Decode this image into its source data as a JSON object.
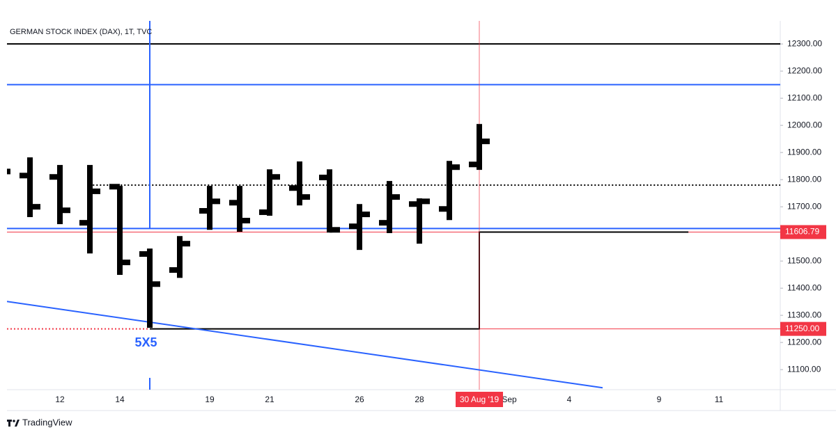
{
  "chart_data": {
    "type": "ohlc",
    "title": "GERMAN STOCK INDEX (DAX), 1T, TVC",
    "categories": [
      null,
      null,
      "12",
      null,
      "14",
      null,
      null,
      "19",
      null,
      "21",
      null,
      null,
      "26",
      null,
      "28",
      null,
      "30 Aug '19",
      "Sep",
      null,
      "4",
      null,
      null,
      "9",
      null,
      "11"
    ],
    "open": [
      11850,
      11815,
      11810,
      11641,
      11774,
      11526,
      11467,
      11685,
      11715,
      11680,
      11769,
      11808,
      11628,
      11641,
      11710,
      11692,
      11856,
      null,
      null,
      null,
      null,
      null,
      null,
      null,
      null
    ],
    "high": [
      11850,
      11882,
      11854,
      11854,
      11777,
      11546,
      11592,
      11777,
      11777,
      11838,
      11867,
      11838,
      11710,
      11795,
      11731,
      11869,
      12005,
      null,
      null,
      null,
      null,
      null,
      null,
      null,
      null
    ],
    "low": [
      11830,
      11662,
      11636,
      11528,
      11449,
      11254,
      11438,
      11615,
      11608,
      11667,
      11705,
      11605,
      11541,
      11603,
      11564,
      11651,
      11836,
      null,
      null,
      null,
      null,
      null,
      null,
      null,
      null
    ],
    "close": [
      11830,
      11700,
      11687,
      11757,
      11495,
      11415,
      11564,
      11720,
      11649,
      11810,
      11736,
      11615,
      11672,
      11736,
      11720,
      11846,
      11941,
      null,
      null,
      null,
      null,
      null,
      null,
      null,
      null
    ],
    "color": "#000000",
    "ylim": [
      11026,
      12385
    ],
    "yticks": [
      {
        "value": 11100,
        "label": "11100.00"
      },
      {
        "value": 11200,
        "label": "11200.00"
      },
      {
        "value": 11300,
        "label": "11300.00"
      },
      {
        "value": 11400,
        "label": "11400.00"
      },
      {
        "value": 11500,
        "label": "11500.00"
      },
      {
        "value": 11700,
        "label": "11700.00"
      },
      {
        "value": 11800,
        "label": "11800.00"
      },
      {
        "value": 11900,
        "label": "11900.00"
      },
      {
        "value": 12000,
        "label": "12000.00"
      },
      {
        "value": 12100,
        "label": "12100.00"
      },
      {
        "value": 12200,
        "label": "12200.00"
      },
      {
        "value": 12300,
        "label": "12300.00"
      }
    ],
    "levels": [
      {
        "value": 12300,
        "color": "#000000"
      },
      {
        "value": 12150,
        "color": "#2962ff"
      },
      {
        "value": 11620,
        "color": "#2962ff"
      }
    ],
    "dotted_level": {
      "value": 11780,
      "color": "#000000"
    },
    "box_levels": [
      {
        "value": 11250,
        "label": "11250.00"
      },
      {
        "value": 11606.79,
        "label": "11606.79"
      }
    ],
    "marker_color": "#f23645",
    "trendline": {
      "values": [
        11351,
        11033
      ],
      "color": "#2962ff"
    },
    "annotation": "5X5",
    "brand": "TradingView"
  }
}
